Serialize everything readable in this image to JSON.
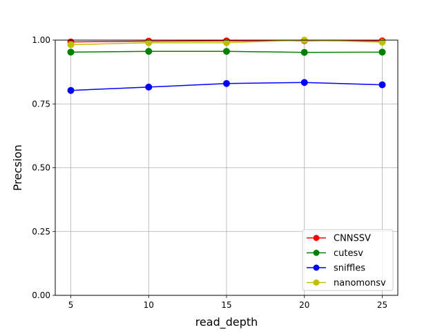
{
  "chart_data": {
    "type": "line",
    "title": "",
    "xlabel": "read_depth",
    "ylabel": "Precsion",
    "x": [
      5,
      10,
      15,
      20,
      25
    ],
    "x_ticks": [
      "5",
      "10",
      "15",
      "20",
      "25"
    ],
    "y_ticks": [
      "0.00",
      "0.25",
      "0.50",
      "0.75",
      "1.00"
    ],
    "xlim": [
      4,
      26
    ],
    "ylim": [
      0,
      1
    ],
    "grid": true,
    "legend_position": "lower-right",
    "series": [
      {
        "name": "CNNSSV",
        "color": "#ff0000",
        "values": [
          0.993,
          0.996,
          0.997,
          0.998,
          0.997
        ]
      },
      {
        "name": "cutesv",
        "color": "#008000",
        "values": [
          0.953,
          0.956,
          0.956,
          0.952,
          0.953
        ]
      },
      {
        "name": "sniffles",
        "color": "#0000ff",
        "values": [
          0.803,
          0.816,
          0.83,
          0.834,
          0.825
        ]
      },
      {
        "name": "nanomonsv",
        "color": "#bfbf00",
        "values": [
          0.982,
          0.99,
          0.99,
          1.0,
          0.992
        ]
      }
    ]
  }
}
